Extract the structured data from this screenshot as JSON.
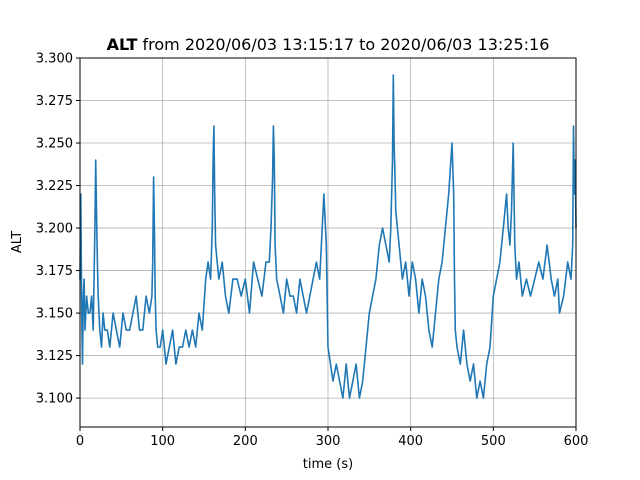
{
  "chart_data": {
    "type": "line",
    "title_bold": "ALT",
    "title_rest": " from 2020/06/03 13:15:17 to 2020/06/03 13:25:16",
    "xlabel": "time (s)",
    "ylabel": "ALT",
    "xlim": [
      0,
      600
    ],
    "ylim": [
      3.083,
      3.3
    ],
    "xticks": [
      0,
      100,
      200,
      300,
      400,
      500,
      600
    ],
    "xtick_labels": [
      "0",
      "100",
      "200",
      "300",
      "400",
      "500",
      "600"
    ],
    "yticks": [
      3.1,
      3.125,
      3.15,
      3.175,
      3.2,
      3.225,
      3.25,
      3.275,
      3.3
    ],
    "ytick_labels": [
      "3.100",
      "3.125",
      "3.150",
      "3.175",
      "3.200",
      "3.225",
      "3.250",
      "3.275",
      "3.300"
    ],
    "grid": true,
    "line_color": "#1f77b4",
    "series": [
      {
        "x": [
          0,
          1,
          2,
          3,
          4,
          5,
          6,
          8,
          10,
          12,
          14,
          16,
          18,
          19,
          20,
          21,
          22,
          24,
          26,
          28,
          30,
          33,
          36,
          40,
          44,
          48,
          52,
          56,
          60,
          64,
          68,
          72,
          76,
          80,
          84,
          87,
          88,
          89,
          90,
          91,
          92,
          94,
          97,
          100,
          104,
          108,
          112,
          116,
          120,
          124,
          128,
          132,
          136,
          140,
          144,
          148,
          152,
          155,
          158,
          160,
          161,
          162,
          163,
          164,
          166,
          168,
          172,
          176,
          180,
          185,
          190,
          195,
          200,
          205,
          210,
          215,
          220,
          225,
          229,
          231,
          233,
          234,
          235,
          236,
          238,
          242,
          246,
          250,
          254,
          258,
          262,
          266,
          270,
          274,
          278,
          282,
          286,
          290,
          293,
          295,
          298,
          300,
          303,
          306,
          310,
          314,
          318,
          322,
          326,
          330,
          334,
          338,
          342,
          346,
          350,
          354,
          358,
          362,
          366,
          370,
          374,
          376,
          378,
          379,
          380,
          381,
          382,
          384,
          386,
          390,
          394,
          398,
          402,
          406,
          410,
          414,
          418,
          422,
          426,
          430,
          434,
          438,
          442,
          446,
          450,
          452,
          453,
          454,
          456,
          460,
          464,
          468,
          472,
          476,
          480,
          484,
          488,
          492,
          496,
          500,
          504,
          508,
          512,
          516,
          518,
          520,
          522,
          524,
          525,
          526,
          528,
          531,
          535,
          540,
          545,
          550,
          555,
          560,
          565,
          570,
          574,
          578,
          580,
          585,
          590,
          594,
          596,
          597,
          598,
          599,
          600
        ],
        "y": [
          3.17,
          3.22,
          3.15,
          3.12,
          3.16,
          3.17,
          3.14,
          3.16,
          3.15,
          3.15,
          3.16,
          3.14,
          3.2,
          3.24,
          3.21,
          3.18,
          3.16,
          3.14,
          3.13,
          3.15,
          3.14,
          3.14,
          3.13,
          3.15,
          3.14,
          3.13,
          3.15,
          3.14,
          3.14,
          3.15,
          3.16,
          3.14,
          3.14,
          3.16,
          3.15,
          3.16,
          3.18,
          3.23,
          3.2,
          3.16,
          3.14,
          3.13,
          3.13,
          3.14,
          3.12,
          3.13,
          3.14,
          3.12,
          3.13,
          3.13,
          3.14,
          3.13,
          3.14,
          3.13,
          3.15,
          3.14,
          3.17,
          3.18,
          3.17,
          3.2,
          3.24,
          3.26,
          3.22,
          3.19,
          3.18,
          3.17,
          3.18,
          3.16,
          3.15,
          3.17,
          3.17,
          3.16,
          3.17,
          3.15,
          3.18,
          3.17,
          3.16,
          3.18,
          3.18,
          3.2,
          3.23,
          3.26,
          3.24,
          3.19,
          3.17,
          3.16,
          3.15,
          3.17,
          3.16,
          3.16,
          3.15,
          3.17,
          3.16,
          3.15,
          3.16,
          3.17,
          3.18,
          3.17,
          3.2,
          3.22,
          3.19,
          3.13,
          3.12,
          3.11,
          3.12,
          3.11,
          3.1,
          3.12,
          3.1,
          3.11,
          3.12,
          3.1,
          3.11,
          3.13,
          3.15,
          3.16,
          3.17,
          3.19,
          3.2,
          3.19,
          3.18,
          3.2,
          3.24,
          3.29,
          3.25,
          3.23,
          3.21,
          3.2,
          3.19,
          3.17,
          3.18,
          3.16,
          3.18,
          3.17,
          3.15,
          3.17,
          3.16,
          3.14,
          3.13,
          3.15,
          3.17,
          3.18,
          3.2,
          3.22,
          3.25,
          3.22,
          3.17,
          3.14,
          3.13,
          3.12,
          3.14,
          3.12,
          3.11,
          3.12,
          3.1,
          3.11,
          3.1,
          3.12,
          3.13,
          3.16,
          3.17,
          3.18,
          3.2,
          3.22,
          3.2,
          3.19,
          3.21,
          3.25,
          3.22,
          3.19,
          3.17,
          3.18,
          3.16,
          3.17,
          3.16,
          3.17,
          3.18,
          3.17,
          3.19,
          3.17,
          3.16,
          3.17,
          3.15,
          3.16,
          3.18,
          3.17,
          3.19,
          3.26,
          3.22,
          3.24,
          3.2
        ]
      }
    ]
  }
}
